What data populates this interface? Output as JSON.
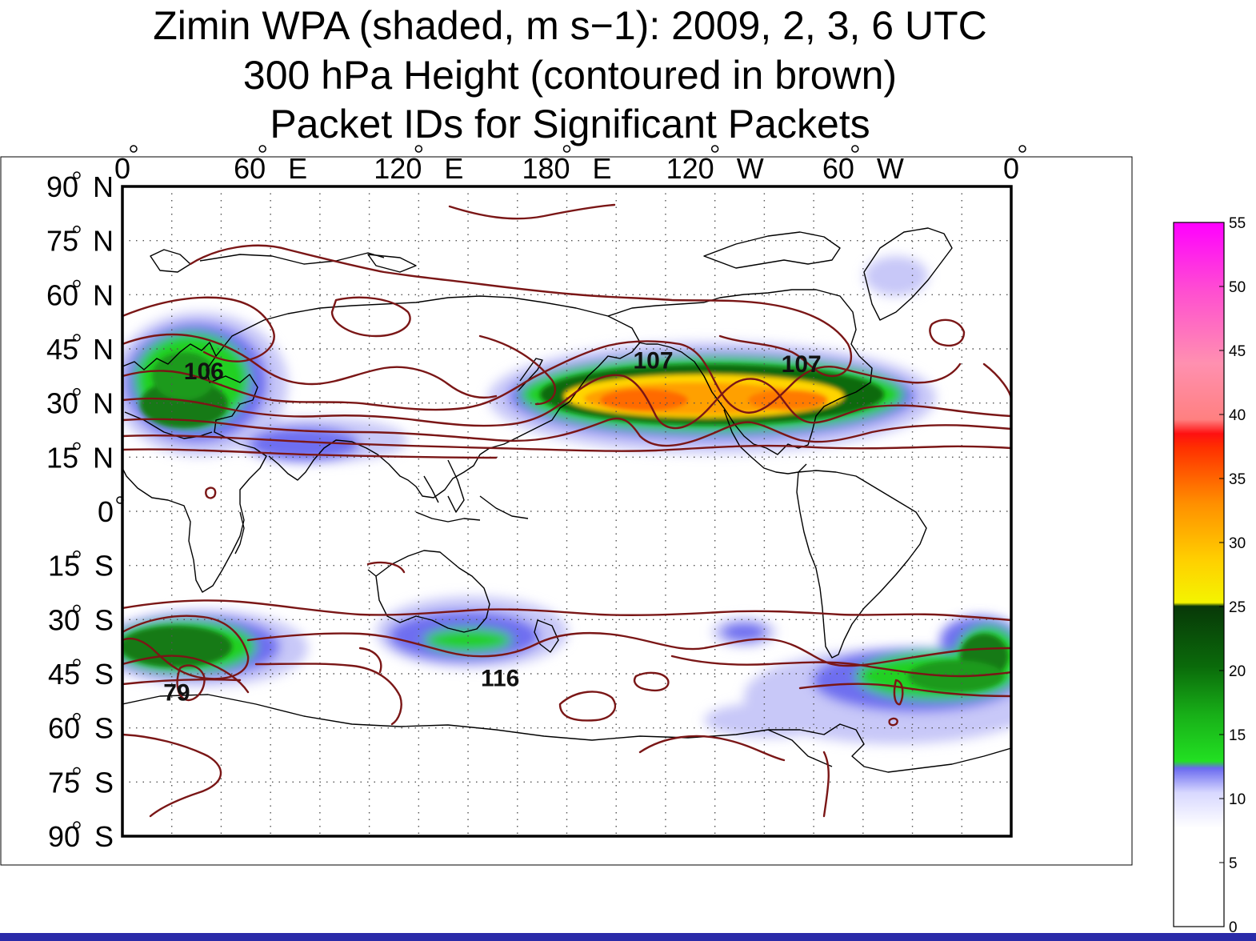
{
  "title_lines": [
    "Zimin WPA (shaded, m s−1): 2009, 2, 3, 6 UTC",
    "300 hPa Height (contoured in brown)",
    "Packet IDs for Significant Packets"
  ],
  "map": {
    "lon_labels": [
      {
        "text": "0",
        "lon": 0
      },
      {
        "text": "60 E",
        "lon": 60
      },
      {
        "text": "120 E",
        "lon": 120
      },
      {
        "text": "180 E",
        "lon": 180
      },
      {
        "text": "120 W",
        "lon": 240
      },
      {
        "text": "60 W",
        "lon": 300
      },
      {
        "text": "0",
        "lon": 360
      }
    ],
    "lat_labels": [
      {
        "text": "90 N",
        "lat": 90
      },
      {
        "text": "75 N",
        "lat": 75
      },
      {
        "text": "60 N",
        "lat": 60
      },
      {
        "text": "45 N",
        "lat": 45
      },
      {
        "text": "30 N",
        "lat": 30
      },
      {
        "text": "15 N",
        "lat": 15
      },
      {
        "text": "0",
        "lat": 0
      },
      {
        "text": "15 S",
        "lat": -15
      },
      {
        "text": "30 S",
        "lat": -30
      },
      {
        "text": "45 S",
        "lat": -45
      },
      {
        "text": "60 S",
        "lat": -60
      },
      {
        "text": "75 S",
        "lat": -75
      },
      {
        "text": "90 S",
        "lat": -90
      }
    ],
    "packets": [
      {
        "id": "106",
        "lon": 33,
        "lat": 39
      },
      {
        "id": "107",
        "lon": 215,
        "lat": 42
      },
      {
        "id": "107",
        "lon": 275,
        "lat": 41
      },
      {
        "id": "79",
        "lon": 22,
        "lat": -50
      },
      {
        "id": "116",
        "lon": 153,
        "lat": -46
      }
    ],
    "colors": {
      "contour": "#7a1616",
      "coast": "#000000",
      "frame": "#000000"
    }
  },
  "colorbar": {
    "ticks": [
      "55",
      "50",
      "45",
      "40",
      "35",
      "30",
      "25",
      "20",
      "15",
      "10",
      "5",
      "0"
    ],
    "vmin": 0,
    "vmax": 55
  }
}
